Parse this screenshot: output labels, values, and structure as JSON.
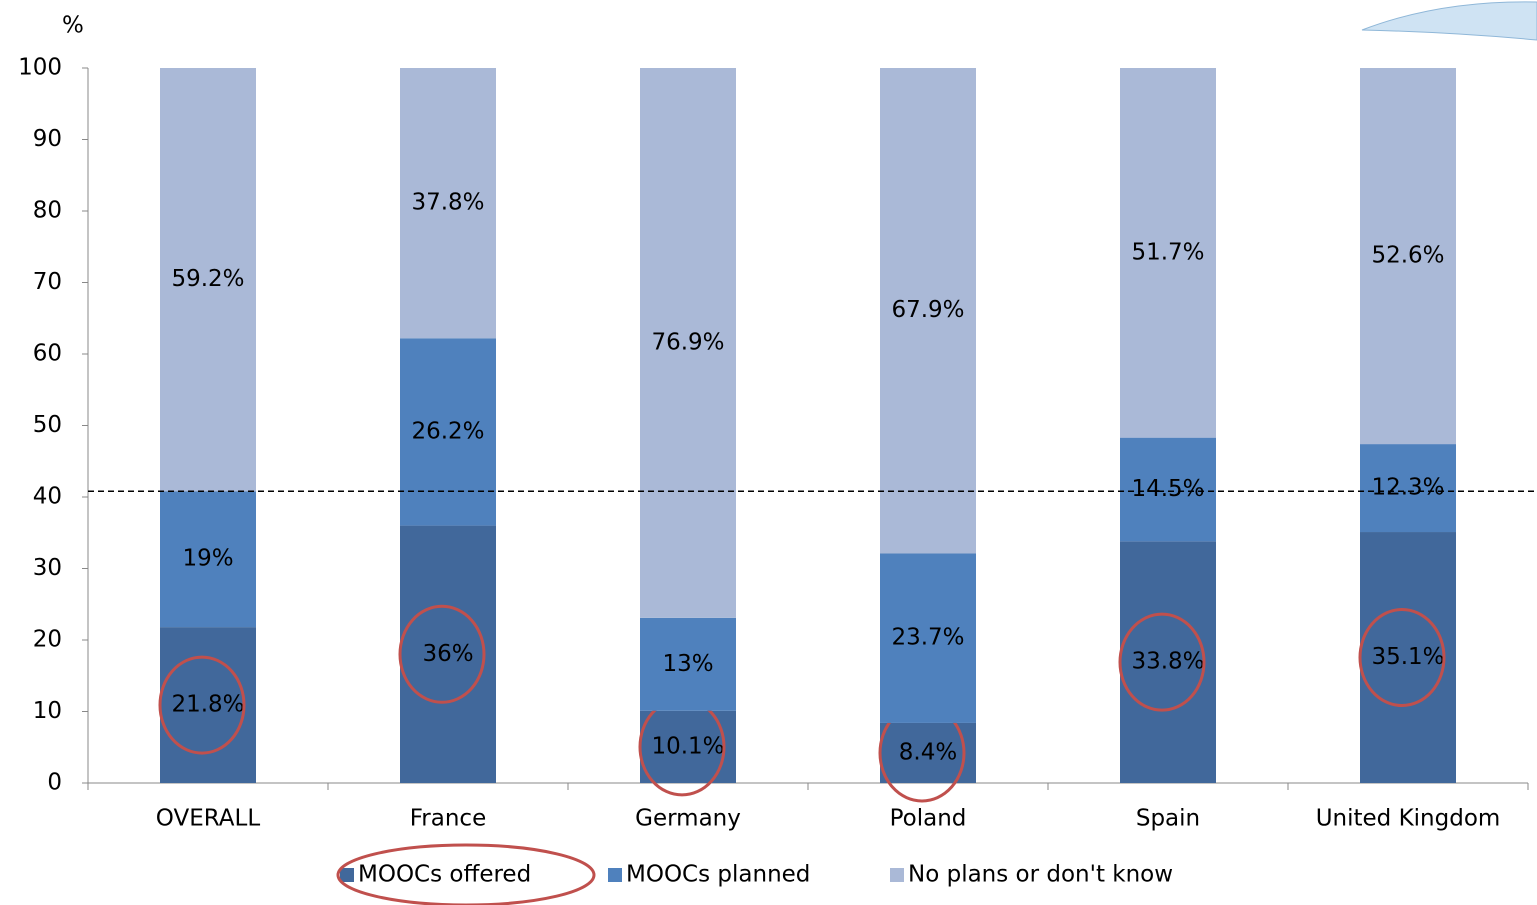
{
  "chart_data": {
    "type": "stacked_bar",
    "y_label": "%",
    "categories": [
      "OVERALL",
      "France",
      "Germany",
      "Poland",
      "Spain",
      "United Kingdom"
    ],
    "series": [
      {
        "name": "MOOCs offered",
        "color": "#41689b",
        "values": [
          21.8,
          36,
          10.1,
          8.4,
          33.8,
          35.1
        ],
        "value_labels": [
          "21.8%",
          "36%",
          "10.1%",
          "8.4%",
          "33.8%",
          "35.1%"
        ]
      },
      {
        "name": "MOOCs planned",
        "color": "#4f81bd",
        "values": [
          19,
          26.2,
          13,
          23.7,
          14.5,
          12.3
        ],
        "value_labels": [
          "19%",
          "26.2%",
          "13%",
          "23.7%",
          "14.5%",
          "12.3%"
        ]
      },
      {
        "name": "No plans or don't know",
        "color": "#aab9d7",
        "values": [
          59.2,
          37.8,
          76.9,
          67.9,
          51.7,
          52.6
        ],
        "value_labels": [
          "59.2%",
          "37.8%",
          "76.9%",
          "67.9%",
          "51.7%",
          "52.6%"
        ]
      }
    ],
    "ylim": [
      0,
      100
    ],
    "yticks": [
      0,
      10,
      20,
      30,
      40,
      50,
      60,
      70,
      80,
      90,
      100
    ],
    "reference_line": 40.8,
    "legend": "bottom"
  }
}
